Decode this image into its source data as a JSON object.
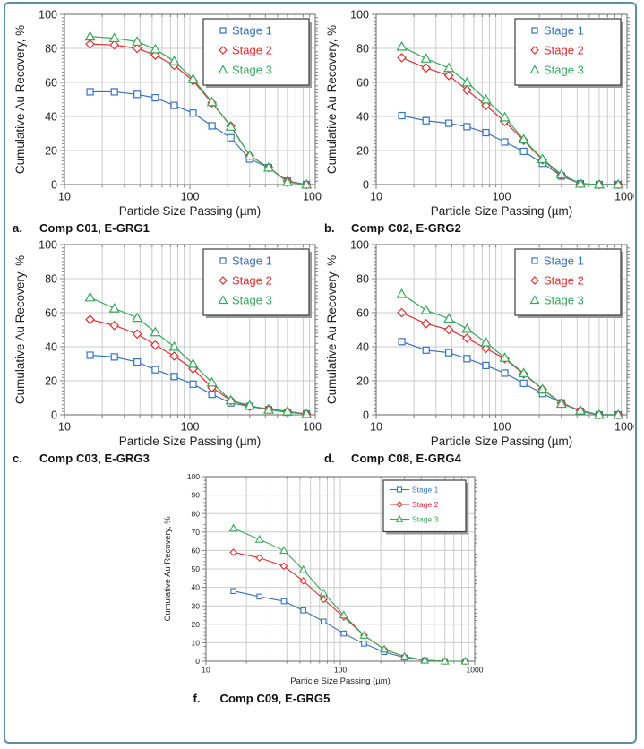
{
  "figure": {
    "border_color": "#5b8db0",
    "background": "#ffffff"
  },
  "style": {
    "axis_color": "#808080",
    "grid_color": "#cccccc",
    "tick_label_color": "#1f1f1f",
    "caption_color": "#111111",
    "legend_border_color": "#3d3d3d",
    "legend_shadow_color": "#9a9a9a",
    "series_colors": {
      "stage1": "#3a72b9",
      "stage2": "#dd2f2f",
      "stage3": "#38a85c"
    }
  },
  "chart_data": [
    {
      "id": "a",
      "type": "line",
      "size": "large",
      "caption_letter": "a.",
      "caption_text": "Comp C01, E-GRG1",
      "title": "",
      "xlabel": "Particle Size Passing (µm)",
      "ylabel": "Cumulative Au Recovery, %",
      "xscale": "log",
      "xlim": [
        10,
        1000
      ],
      "ylim": [
        0,
        100
      ],
      "y_major": 20,
      "y_minor": 2,
      "grid": true,
      "legend_position": "top-right",
      "legend_line": false,
      "x": [
        16,
        25,
        38,
        53,
        75,
        106,
        150,
        212,
        300,
        425,
        600,
        850
      ],
      "series": [
        {
          "name": "Stage 1",
          "marker": "square",
          "color": "#3a72b9",
          "values": [
            54.5,
            54.5,
            53,
            51,
            46.5,
            42,
            34.5,
            27.5,
            15,
            10,
            2,
            0
          ]
        },
        {
          "name": "Stage 2",
          "marker": "diamond",
          "color": "#dd2f2f",
          "values": [
            82.5,
            82,
            80,
            76,
            70,
            61,
            48,
            34.5,
            17,
            10,
            2,
            0
          ]
        },
        {
          "name": "Stage 3",
          "marker": "triangle",
          "color": "#38a85c",
          "values": [
            87,
            86,
            84,
            79.5,
            72.5,
            62,
            48.5,
            34,
            17,
            10,
            1.5,
            0
          ]
        }
      ]
    },
    {
      "id": "b",
      "type": "line",
      "size": "large",
      "caption_letter": "b.",
      "caption_text": "Comp C02, E-GRG2",
      "title": "",
      "xlabel": "Particle Size Passing (µm)",
      "ylabel": "Cumulative Au Recovery, %",
      "xscale": "log",
      "xlim": [
        10,
        1000
      ],
      "ylim": [
        0,
        100
      ],
      "y_major": 20,
      "y_minor": 2,
      "grid": true,
      "legend_position": "top-right",
      "legend_line": false,
      "x": [
        16,
        25,
        38,
        53,
        75,
        106,
        150,
        212,
        300,
        425,
        600,
        850
      ],
      "series": [
        {
          "name": "Stage 1",
          "marker": "square",
          "color": "#3a72b9",
          "values": [
            40.5,
            37.5,
            36,
            34,
            30.5,
            25,
            19.5,
            12.5,
            5,
            0.5,
            0,
            0
          ]
        },
        {
          "name": "Stage 2",
          "marker": "diamond",
          "color": "#dd2f2f",
          "values": [
            74.5,
            68.5,
            64,
            55.5,
            46.5,
            37,
            26,
            14.5,
            5.5,
            0.5,
            0,
            0
          ]
        },
        {
          "name": "Stage 3",
          "marker": "triangle",
          "color": "#38a85c",
          "values": [
            81,
            74,
            68.5,
            60,
            50,
            39.5,
            26.5,
            15,
            6,
            0.5,
            0,
            0
          ]
        }
      ]
    },
    {
      "id": "c",
      "type": "line",
      "size": "large",
      "caption_letter": "c.",
      "caption_text": "Comp C03, E-GRG3",
      "title": "",
      "xlabel": "Particle Size Passing (µm)",
      "ylabel": "Cumulative Au Recovery, %",
      "xscale": "log",
      "xlim": [
        10,
        1000
      ],
      "ylim": [
        0,
        100
      ],
      "y_major": 20,
      "y_minor": 2,
      "grid": true,
      "legend_position": "top-right",
      "legend_line": false,
      "x": [
        16,
        25,
        38,
        53,
        75,
        106,
        150,
        212,
        300,
        425,
        600,
        850
      ],
      "series": [
        {
          "name": "Stage 1",
          "marker": "square",
          "color": "#3a72b9",
          "values": [
            35,
            34,
            31,
            26.5,
            22.5,
            18,
            12,
            7,
            5,
            3,
            1.5,
            0.5
          ]
        },
        {
          "name": "Stage 2",
          "marker": "diamond",
          "color": "#dd2f2f",
          "values": [
            56,
            52.5,
            47.5,
            41,
            34.5,
            27,
            16,
            8.5,
            5,
            3.5,
            2,
            0.5
          ]
        },
        {
          "name": "Stage 3",
          "marker": "triangle",
          "color": "#38a85c",
          "values": [
            69,
            62.5,
            57,
            48.5,
            40,
            30,
            19,
            8.5,
            5.5,
            3,
            2,
            0.5
          ]
        }
      ]
    },
    {
      "id": "d",
      "type": "line",
      "size": "large",
      "caption_letter": "d.",
      "caption_text": "Comp C08, E-GRG4",
      "title": "",
      "xlabel": "Particle Size Passing (µm)",
      "ylabel": "Cumulative Au Recovery, %",
      "xscale": "log",
      "xlim": [
        10,
        1000
      ],
      "ylim": [
        0,
        100
      ],
      "y_major": 20,
      "y_minor": 2,
      "grid": true,
      "legend_position": "top-right",
      "legend_line": false,
      "x": [
        16,
        25,
        38,
        53,
        75,
        106,
        150,
        212,
        300,
        425,
        600,
        850
      ],
      "series": [
        {
          "name": "Stage 1",
          "marker": "square",
          "color": "#3a72b9",
          "values": [
            43,
            38,
            36.5,
            33,
            29,
            24.5,
            18.5,
            12.5,
            7,
            2,
            0,
            0
          ]
        },
        {
          "name": "Stage 2",
          "marker": "diamond",
          "color": "#dd2f2f",
          "values": [
            60,
            53.5,
            50,
            45,
            39,
            33,
            24,
            15,
            7,
            2.5,
            0,
            0
          ]
        },
        {
          "name": "Stage 3",
          "marker": "triangle",
          "color": "#38a85c",
          "values": [
            71,
            61.5,
            56.5,
            50.5,
            42.5,
            33.5,
            24.5,
            15,
            6.5,
            2.5,
            0,
            0
          ]
        }
      ]
    },
    {
      "id": "f",
      "type": "line",
      "size": "small",
      "caption_letter": "f.",
      "caption_text": "Comp C09, E-GRG5",
      "title": "",
      "xlabel": "Particle Size Passing (µm)",
      "ylabel": "Cumulative Au Recovery, %",
      "xscale": "log",
      "xlim": [
        10,
        1000
      ],
      "ylim": [
        0,
        100
      ],
      "y_major": 10,
      "y_minor": 2,
      "grid": true,
      "legend_position": "top-right",
      "legend_line": true,
      "x": [
        16,
        25,
        38,
        53,
        75,
        106,
        150,
        212,
        300,
        425,
        600,
        850
      ],
      "series": [
        {
          "name": "Stage 1",
          "marker": "square",
          "color": "#3a72b9",
          "values": [
            38,
            35,
            32.5,
            27.5,
            21.5,
            15,
            9.5,
            5,
            2,
            0.5,
            0,
            0
          ]
        },
        {
          "name": "Stage 2",
          "marker": "diamond",
          "color": "#dd2f2f",
          "values": [
            59,
            56,
            51.5,
            43.5,
            33.5,
            24,
            14,
            6.5,
            2.5,
            0.5,
            0,
            0
          ]
        },
        {
          "name": "Stage 3",
          "marker": "triangle",
          "color": "#38a85c",
          "values": [
            72,
            66,
            60,
            49.5,
            37,
            25,
            14,
            6.5,
            2.5,
            0.5,
            0,
            0
          ]
        }
      ]
    }
  ]
}
